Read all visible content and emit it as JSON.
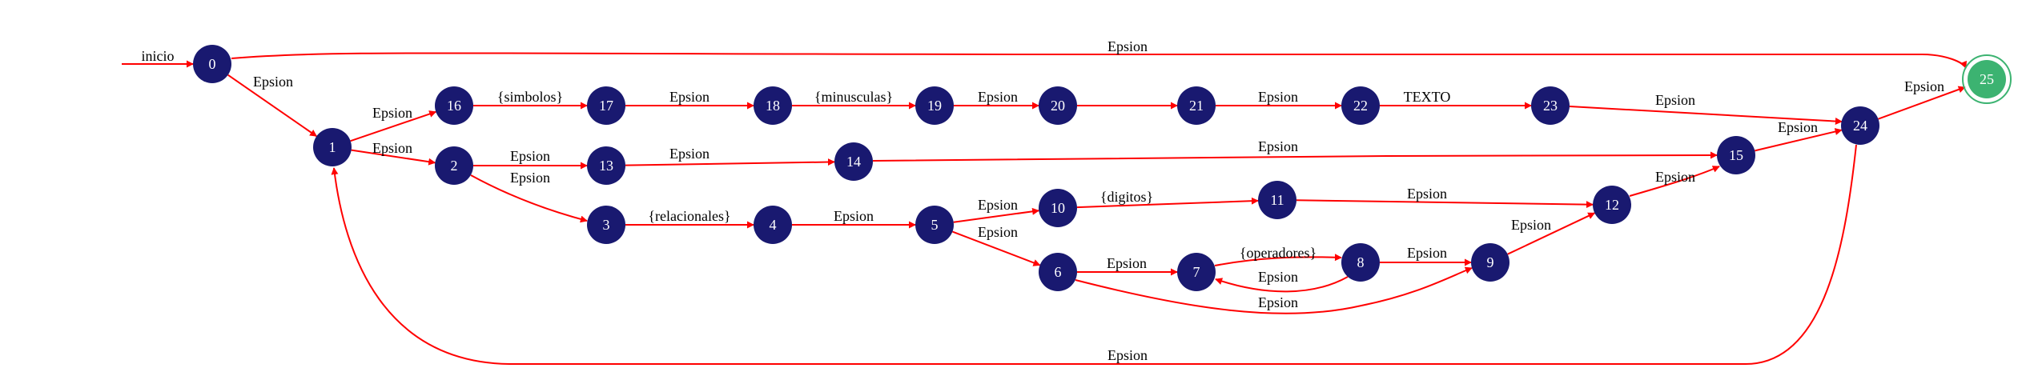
{
  "colors": {
    "node_fill": "#191970",
    "final_fill": "#3cb371",
    "edge": "#ff0000",
    "text_on_node": "#ffffff",
    "label": "#000000"
  },
  "start_label": "inicio",
  "nodes": [
    {
      "id": "0",
      "label": "0"
    },
    {
      "id": "1",
      "label": "1"
    },
    {
      "id": "2",
      "label": "2"
    },
    {
      "id": "3",
      "label": "3"
    },
    {
      "id": "4",
      "label": "4"
    },
    {
      "id": "5",
      "label": "5"
    },
    {
      "id": "6",
      "label": "6"
    },
    {
      "id": "7",
      "label": "7"
    },
    {
      "id": "8",
      "label": "8"
    },
    {
      "id": "9",
      "label": "9"
    },
    {
      "id": "10",
      "label": "10"
    },
    {
      "id": "11",
      "label": "11"
    },
    {
      "id": "12",
      "label": "12"
    },
    {
      "id": "13",
      "label": "13"
    },
    {
      "id": "14",
      "label": "14"
    },
    {
      "id": "15",
      "label": "15"
    },
    {
      "id": "16",
      "label": "16"
    },
    {
      "id": "17",
      "label": "17"
    },
    {
      "id": "18",
      "label": "18"
    },
    {
      "id": "19",
      "label": "19"
    },
    {
      "id": "20",
      "label": "20"
    },
    {
      "id": "21",
      "label": "21"
    },
    {
      "id": "22",
      "label": "22"
    },
    {
      "id": "23",
      "label": "23"
    },
    {
      "id": "24",
      "label": "24"
    },
    {
      "id": "25",
      "label": "25",
      "final": true
    }
  ],
  "edges": [
    {
      "from": "0",
      "to": "25",
      "label": "Epsion"
    },
    {
      "from": "0",
      "to": "1",
      "label": "Epsion"
    },
    {
      "from": "1",
      "to": "16",
      "label": "Epsion"
    },
    {
      "from": "1",
      "to": "2",
      "label": "Epsion"
    },
    {
      "from": "16",
      "to": "17",
      "label": "{simbolos}"
    },
    {
      "from": "17",
      "to": "18",
      "label": "Epsion"
    },
    {
      "from": "18",
      "to": "19",
      "label": "{minusculas}"
    },
    {
      "from": "19",
      "to": "20",
      "label": "Epsion"
    },
    {
      "from": "20",
      "to": "21",
      "label": ""
    },
    {
      "from": "21",
      "to": "22",
      "label": "Epsion"
    },
    {
      "from": "22",
      "to": "23",
      "label": "TEXTO"
    },
    {
      "from": "23",
      "to": "24",
      "label": "Epsion"
    },
    {
      "from": "2",
      "to": "13",
      "label": "Epsion"
    },
    {
      "from": "2",
      "to": "3",
      "label": "Epsion"
    },
    {
      "from": "13",
      "to": "14",
      "label": "Epsion"
    },
    {
      "from": "14",
      "to": "15",
      "label": "Epsion"
    },
    {
      "from": "3",
      "to": "4",
      "label": "{relacionales}"
    },
    {
      "from": "4",
      "to": "5",
      "label": "Epsion"
    },
    {
      "from": "5",
      "to": "10",
      "label": "Epsion"
    },
    {
      "from": "5",
      "to": "6",
      "label": "Epsion"
    },
    {
      "from": "10",
      "to": "11",
      "label": "{digitos}"
    },
    {
      "from": "11",
      "to": "12",
      "label": "Epsion"
    },
    {
      "from": "6",
      "to": "7",
      "label": "Epsion"
    },
    {
      "from": "6",
      "to": "9",
      "label": "Epsion"
    },
    {
      "from": "7",
      "to": "8",
      "label": "{operadores}"
    },
    {
      "from": "8",
      "to": "7",
      "label": "Epsion"
    },
    {
      "from": "8",
      "to": "9",
      "label": "Epsion"
    },
    {
      "from": "9",
      "to": "12",
      "label": "Epsion"
    },
    {
      "from": "12",
      "to": "15",
      "label": "Epsion"
    },
    {
      "from": "15",
      "to": "24",
      "label": "Epsion"
    },
    {
      "from": "24",
      "to": "25",
      "label": "Epsion"
    },
    {
      "from": "24",
      "to": "1",
      "label": "Epsion"
    }
  ]
}
